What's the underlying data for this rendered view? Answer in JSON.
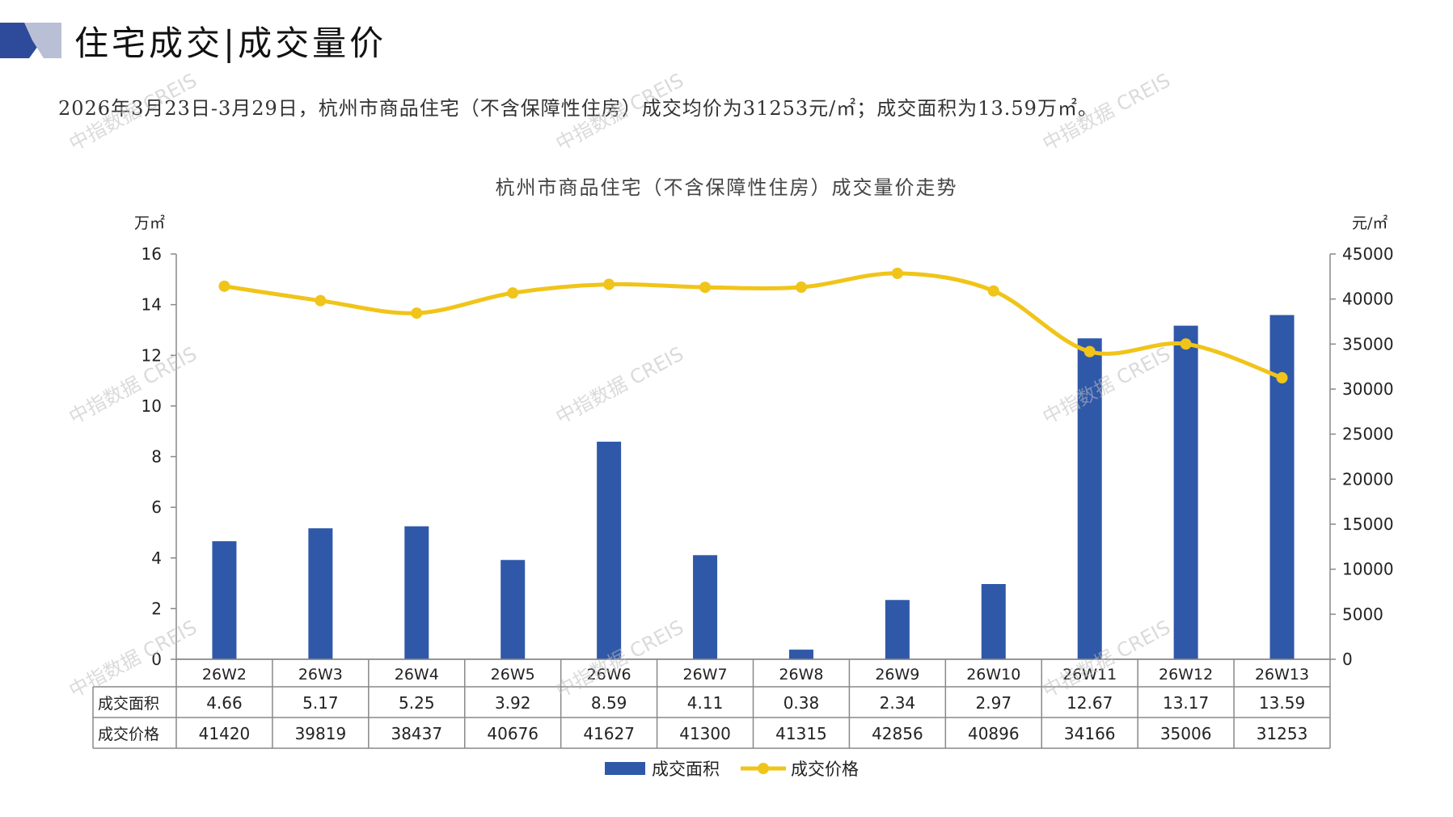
{
  "header": {
    "title": "住宅成交|成交量价",
    "summary": "2026年3月23日-3月29日，杭州市商品住宅（不含保障性住房）成交均价为31253元/㎡；成交面积为13.59万㎡。"
  },
  "watermark": "中指数据 CREIS",
  "colors": {
    "bar": "#2f58a8",
    "line": "#f0c419",
    "logo_dark": "#2e4a9a",
    "logo_light": "#b9bfd4"
  },
  "chart_data": {
    "type": "bar",
    "title": "杭州市商品住宅（不含保障性住房）成交量价走势",
    "categories": [
      "26W2",
      "26W3",
      "26W4",
      "26W5",
      "26W6",
      "26W7",
      "26W8",
      "26W9",
      "26W10",
      "26W11",
      "26W12",
      "26W13"
    ],
    "series": [
      {
        "name": "成交面积",
        "type": "bar",
        "axis": "left",
        "values": [
          4.66,
          5.17,
          5.25,
          3.92,
          8.59,
          4.11,
          0.38,
          2.34,
          2.97,
          12.67,
          13.17,
          13.59
        ]
      },
      {
        "name": "成交价格",
        "type": "line",
        "axis": "right",
        "values": [
          41420,
          39819,
          38437,
          40676,
          41627,
          41300,
          41315,
          42856,
          40896,
          34166,
          35006,
          31253
        ]
      }
    ],
    "y_left": {
      "unit": "万㎡",
      "ylim": [
        0,
        16
      ],
      "ticks": [
        "0",
        "2",
        "4",
        "6",
        "8",
        "10",
        "12",
        "14",
        "16"
      ]
    },
    "y_right": {
      "unit": "元/㎡",
      "ylim": [
        0,
        45000
      ],
      "ticks": [
        "0",
        "5000",
        "10000",
        "15000",
        "20000",
        "25000",
        "30000",
        "35000",
        "40000",
        "45000"
      ]
    },
    "data_table": true,
    "grid": false,
    "legend": "bottom-center"
  }
}
